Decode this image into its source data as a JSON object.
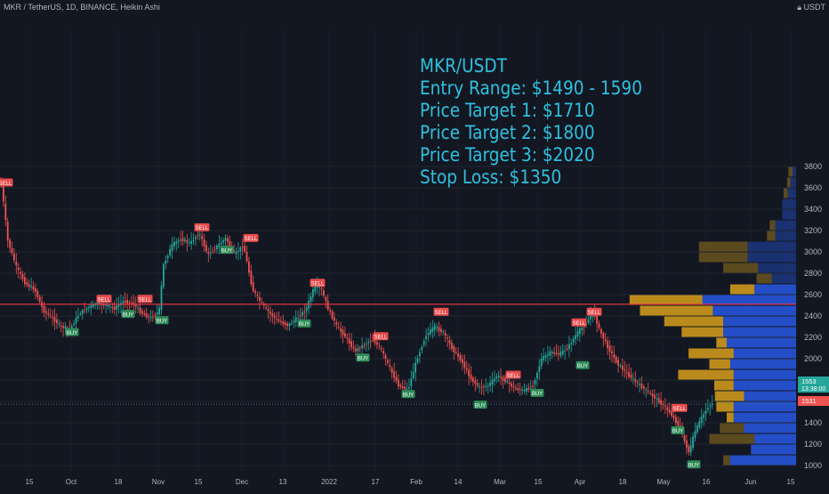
{
  "symbol": "MKR / TetherUS, 1D, BINANCE, Heikin Ashi",
  "currency": "USDT",
  "annotation": {
    "lines": [
      "MKR/USDT",
      "Entry Range: $1490 - 1590",
      "Price Target 1: $1710",
      "Price Target 2: $1800",
      "Price Target 3: $2020",
      "Stop Loss: $1350"
    ]
  },
  "colors": {
    "background": "#131722",
    "bull": "#26a69a",
    "bear": "#ef5350",
    "annotation": "#2fc0de",
    "resistance": "#f23645",
    "vp_up": "#2962ff",
    "vp_down": "#e5a91b"
  },
  "chart_data": {
    "type": "candlestick",
    "chart_style": "Heikin Ashi",
    "ylim": [
      950,
      3900
    ],
    "y_ticks": [
      1000,
      1200,
      1400,
      1600,
      1800,
      2000,
      2200,
      2400,
      2600,
      2800,
      3000,
      3200,
      3400,
      3600,
      3800
    ],
    "x_ticks": [
      "15",
      "Oct",
      "18",
      "Nov",
      "15",
      "Dec",
      "13",
      "2022",
      "17",
      "Feb",
      "14",
      "Mar",
      "15",
      "Apr",
      "18",
      "May",
      "16",
      "Jun",
      "15"
    ],
    "price_path": [
      [
        0,
        3650
      ],
      [
        3,
        3620
      ],
      [
        10,
        3100
      ],
      [
        20,
        2850
      ],
      [
        30,
        2700
      ],
      [
        40,
        2650
      ],
      [
        50,
        2450
      ],
      [
        60,
        2380
      ],
      [
        70,
        2300
      ],
      [
        80,
        2280
      ],
      [
        90,
        2420
      ],
      [
        100,
        2480
      ],
      [
        110,
        2520
      ],
      [
        120,
        2500
      ],
      [
        130,
        2470
      ],
      [
        140,
        2540
      ],
      [
        150,
        2520
      ],
      [
        160,
        2430
      ],
      [
        170,
        2380
      ],
      [
        180,
        2440
      ],
      [
        185,
        2880
      ],
      [
        195,
        3070
      ],
      [
        205,
        3120
      ],
      [
        215,
        3080
      ],
      [
        225,
        3180
      ],
      [
        235,
        2970
      ],
      [
        245,
        3050
      ],
      [
        255,
        3130
      ],
      [
        265,
        2980
      ],
      [
        275,
        3060
      ],
      [
        285,
        2650
      ],
      [
        295,
        2520
      ],
      [
        305,
        2420
      ],
      [
        315,
        2350
      ],
      [
        325,
        2310
      ],
      [
        335,
        2380
      ],
      [
        345,
        2460
      ],
      [
        355,
        2680
      ],
      [
        362,
        2660
      ],
      [
        370,
        2470
      ],
      [
        380,
        2300
      ],
      [
        390,
        2200
      ],
      [
        400,
        2070
      ],
      [
        410,
        2130
      ],
      [
        420,
        2180
      ],
      [
        430,
        2080
      ],
      [
        440,
        1900
      ],
      [
        450,
        1740
      ],
      [
        460,
        1710
      ],
      [
        470,
        2000
      ],
      [
        480,
        2220
      ],
      [
        490,
        2300
      ],
      [
        500,
        2240
      ],
      [
        510,
        2090
      ],
      [
        520,
        1980
      ],
      [
        530,
        1820
      ],
      [
        540,
        1730
      ],
      [
        550,
        1750
      ],
      [
        560,
        1840
      ],
      [
        570,
        1790
      ],
      [
        580,
        1720
      ],
      [
        590,
        1700
      ],
      [
        600,
        1740
      ],
      [
        610,
        2000
      ],
      [
        620,
        2060
      ],
      [
        630,
        2040
      ],
      [
        640,
        2110
      ],
      [
        650,
        2240
      ],
      [
        660,
        2330
      ],
      [
        668,
        2450
      ],
      [
        675,
        2270
      ],
      [
        685,
        2100
      ],
      [
        695,
        1960
      ],
      [
        705,
        1870
      ],
      [
        715,
        1790
      ],
      [
        725,
        1720
      ],
      [
        735,
        1650
      ],
      [
        745,
        1580
      ],
      [
        755,
        1490
      ],
      [
        765,
        1360
      ],
      [
        770,
        1240
      ],
      [
        776,
        1120
      ],
      [
        782,
        1310
      ],
      [
        790,
        1450
      ],
      [
        798,
        1560
      ],
      [
        803,
        1580
      ]
    ],
    "signals": [
      {
        "type": "SELL",
        "x": 6,
        "price": 3650
      },
      {
        "type": "BUY",
        "x": 81,
        "price": 2250
      },
      {
        "type": "SELL",
        "x": 117,
        "price": 2560
      },
      {
        "type": "BUY",
        "x": 144,
        "price": 2420
      },
      {
        "type": "SELL",
        "x": 163,
        "price": 2560
      },
      {
        "type": "BUY",
        "x": 182,
        "price": 2360
      },
      {
        "type": "SELL",
        "x": 227,
        "price": 3230
      },
      {
        "type": "BUY",
        "x": 255,
        "price": 3020
      },
      {
        "type": "SELL",
        "x": 282,
        "price": 3130
      },
      {
        "type": "BUY",
        "x": 342,
        "price": 2330
      },
      {
        "type": "SELL",
        "x": 357,
        "price": 2710
      },
      {
        "type": "SELL",
        "x": 428,
        "price": 2210
      },
      {
        "type": "BUY",
        "x": 408,
        "price": 2010
      },
      {
        "type": "BUY",
        "x": 459,
        "price": 1670
      },
      {
        "type": "SELL",
        "x": 496,
        "price": 2440
      },
      {
        "type": "BUY",
        "x": 540,
        "price": 1570
      },
      {
        "type": "SELL",
        "x": 577,
        "price": 1850
      },
      {
        "type": "BUY",
        "x": 604,
        "price": 1680
      },
      {
        "type": "SELL",
        "x": 651,
        "price": 2340
      },
      {
        "type": "SELL",
        "x": 668,
        "price": 2440
      },
      {
        "type": "BUY",
        "x": 655,
        "price": 1940
      },
      {
        "type": "SELL",
        "x": 764,
        "price": 1540
      },
      {
        "type": "BUY",
        "x": 762,
        "price": 1330
      },
      {
        "type": "BUY",
        "x": 780,
        "price": 1010
      }
    ],
    "resistance_line": 2510,
    "current_price_line": 1575,
    "price_labels": [
      "1553",
      "13:38:00",
      "1531"
    ],
    "volume_profile": [
      {
        "low": 1000,
        "high": 1100,
        "up": 95,
        "down": 10
      },
      {
        "low": 1100,
        "high": 1200,
        "up": 65,
        "down": 0
      },
      {
        "low": 1200,
        "high": 1300,
        "up": 60,
        "down": 65
      },
      {
        "low": 1300,
        "high": 1400,
        "up": 75,
        "down": 35
      },
      {
        "low": 1400,
        "high": 1500,
        "up": 90,
        "down": 10
      },
      {
        "low": 1500,
        "high": 1600,
        "up": 90,
        "down": 25
      },
      {
        "low": 1600,
        "high": 1700,
        "up": 75,
        "down": 42
      },
      {
        "low": 1700,
        "high": 1800,
        "up": 90,
        "down": 28
      },
      {
        "low": 1800,
        "high": 1900,
        "up": 90,
        "down": 80
      },
      {
        "low": 1900,
        "high": 2000,
        "up": 95,
        "down": 30
      },
      {
        "low": 2000,
        "high": 2100,
        "up": 90,
        "down": 65
      },
      {
        "low": 2100,
        "high": 2200,
        "up": 100,
        "down": 15
      },
      {
        "low": 2200,
        "high": 2300,
        "up": 105,
        "down": 60
      },
      {
        "low": 2300,
        "high": 2400,
        "up": 105,
        "down": 85
      },
      {
        "low": 2400,
        "high": 2500,
        "up": 120,
        "down": 105
      },
      {
        "low": 2500,
        "high": 2600,
        "up": 135,
        "down": 105
      },
      {
        "low": 2600,
        "high": 2700,
        "up": 60,
        "down": 35
      },
      {
        "low": 2700,
        "high": 2800,
        "up": 35,
        "down": 22
      },
      {
        "low": 2800,
        "high": 2900,
        "up": 55,
        "down": 50
      },
      {
        "low": 2900,
        "high": 3000,
        "up": 70,
        "down": 70
      },
      {
        "low": 3000,
        "high": 3100,
        "up": 70,
        "down": 70
      },
      {
        "low": 3100,
        "high": 3200,
        "up": 30,
        "down": 12
      },
      {
        "low": 3200,
        "high": 3300,
        "up": 30,
        "down": 8
      },
      {
        "low": 3300,
        "high": 3400,
        "up": 20,
        "down": 0
      },
      {
        "low": 3400,
        "high": 3500,
        "up": 20,
        "down": 0
      },
      {
        "low": 3500,
        "high": 3600,
        "up": 12,
        "down": 6
      },
      {
        "low": 3600,
        "high": 3700,
        "up": 8,
        "down": 5
      },
      {
        "low": 3700,
        "high": 3800,
        "up": 5,
        "down": 6
      }
    ]
  }
}
